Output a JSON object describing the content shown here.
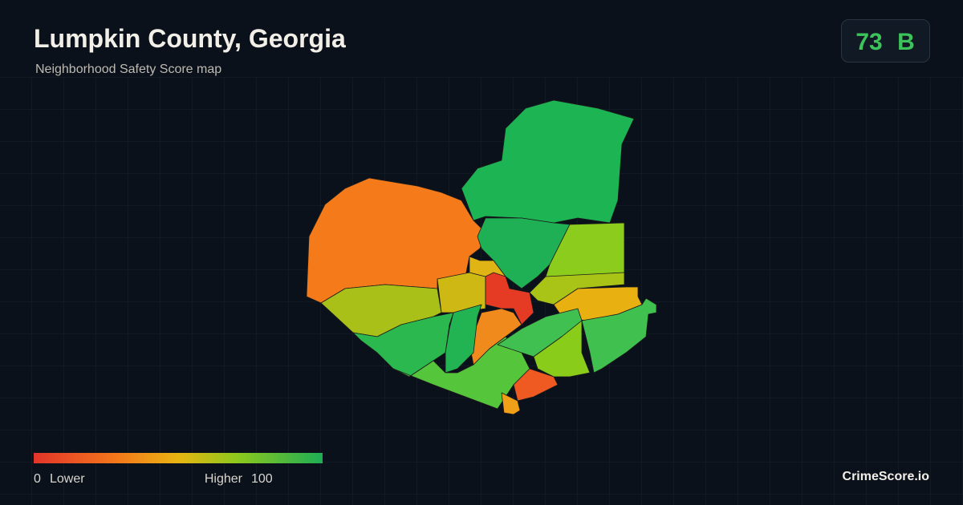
{
  "header": {
    "title": "Lumpkin County, Georgia",
    "subtitle": "Neighborhood Safety Score map"
  },
  "score": {
    "value": 73,
    "grade": "B"
  },
  "legend": {
    "min": 0,
    "min_label": "Lower",
    "max_label": "Higher",
    "max": 100
  },
  "brand": "CrimeScore.io"
}
